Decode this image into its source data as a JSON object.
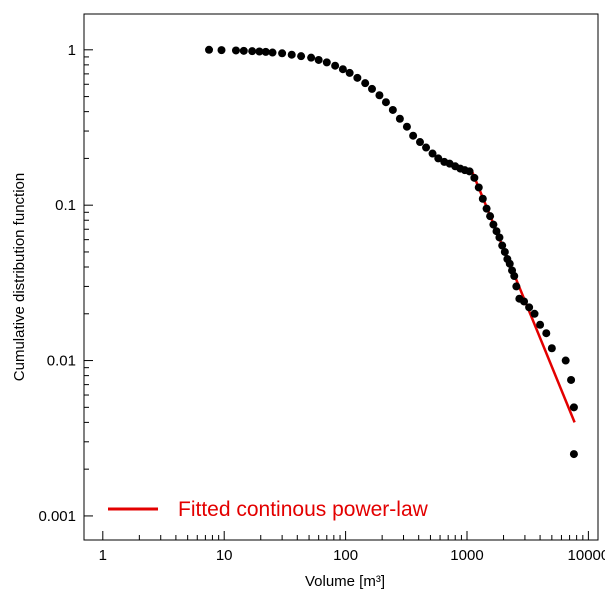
{
  "chart_data": {
    "type": "scatter",
    "xlabel": "Volume [m³]",
    "ylabel": "Cumulative distribution function",
    "x_scale": "log",
    "y_scale": "log",
    "xlim": [
      0.7,
      12000
    ],
    "ylim": [
      0.0007,
      1.7
    ],
    "x_ticks": [
      {
        "value": 1,
        "label": "1"
      },
      {
        "value": 10,
        "label": "10"
      },
      {
        "value": 100,
        "label": "100"
      },
      {
        "value": 1000,
        "label": "1000"
      },
      {
        "value": 10000,
        "label": "10000"
      }
    ],
    "y_ticks": [
      {
        "value": 0.001,
        "label": "0.001"
      },
      {
        "value": 0.01,
        "label": "0.01"
      },
      {
        "value": 0.1,
        "label": "0.1"
      },
      {
        "value": 1,
        "label": "1"
      }
    ],
    "grid": false,
    "legend": {
      "placement": "bottom-left",
      "entries": [
        {
          "label": "Fitted continous power-law",
          "color": "#e30000"
        }
      ]
    },
    "colors": {
      "points": "#000000",
      "fit": "#e30000"
    },
    "series": [
      {
        "kind": "points",
        "x": [
          7.5,
          9.5,
          12.5,
          14.5,
          17,
          19.5,
          22,
          25,
          30,
          36,
          43,
          52,
          60,
          70,
          82,
          95,
          108,
          125,
          145,
          165,
          190,
          215,
          245,
          280,
          320,
          360,
          410,
          460,
          520,
          580,
          650,
          720,
          800,
          880,
          960,
          1050,
          1150,
          1250,
          1350,
          1450,
          1550,
          1650,
          1750,
          1850,
          1950,
          2050,
          2150,
          2250,
          2350,
          2450,
          2550,
          2700,
          2950,
          3250,
          3600,
          4000,
          4500,
          5000,
          6500,
          7200,
          7600,
          7600
        ],
        "y": [
          1.0,
          0.995,
          0.99,
          0.985,
          0.98,
          0.975,
          0.97,
          0.96,
          0.95,
          0.93,
          0.91,
          0.89,
          0.86,
          0.83,
          0.79,
          0.75,
          0.71,
          0.66,
          0.61,
          0.56,
          0.51,
          0.46,
          0.41,
          0.36,
          0.32,
          0.28,
          0.255,
          0.235,
          0.215,
          0.2,
          0.19,
          0.185,
          0.178,
          0.172,
          0.168,
          0.165,
          0.15,
          0.13,
          0.11,
          0.095,
          0.085,
          0.075,
          0.068,
          0.062,
          0.055,
          0.05,
          0.045,
          0.042,
          0.038,
          0.035,
          0.03,
          0.025,
          0.024,
          0.022,
          0.02,
          0.017,
          0.015,
          0.012,
          0.01,
          0.0075,
          0.005,
          0.0025
        ]
      },
      {
        "kind": "fit-line",
        "x": [
          1100,
          7700
        ],
        "y": [
          0.165,
          0.004
        ]
      }
    ]
  }
}
